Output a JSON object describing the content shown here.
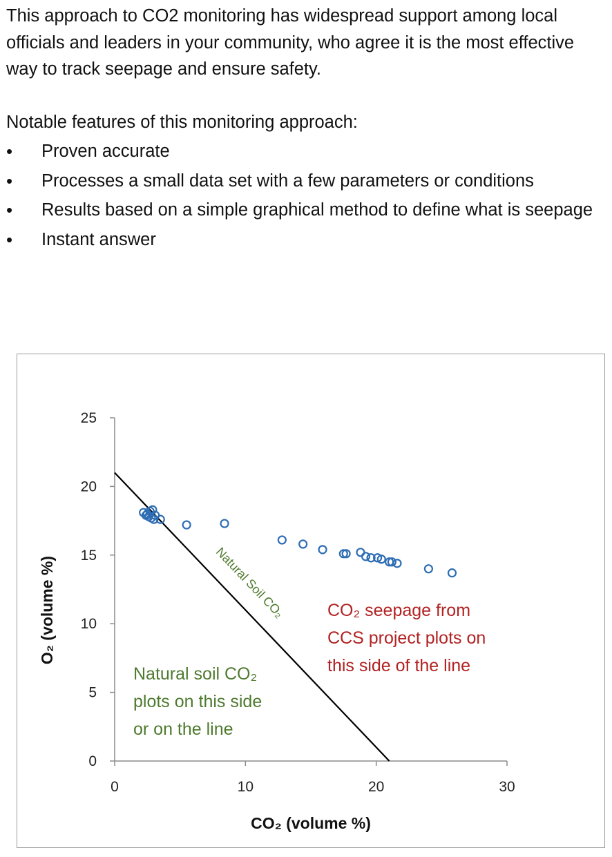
{
  "intro": {
    "paragraph": "This approach to CO2 monitoring has widespread support among local officials and leaders in your community, who agree it is the most effective way to track seepage and ensure safety.",
    "features_heading": "Notable features of this monitoring approach:",
    "features": [
      "Proven accurate",
      "Processes a small data set with a few parameters or conditions",
      "Results based on a simple graphical method to define what is seepage",
      "Instant answer"
    ],
    "bullet_symbol": "•"
  },
  "chart_data": {
    "type": "scatter",
    "xlabel": "CO₂ (volume %)",
    "ylabel": "O₂ (volume %)",
    "xlim": [
      0,
      30
    ],
    "ylim": [
      0,
      25
    ],
    "xticks": [
      "0",
      "10",
      "20",
      "30"
    ],
    "yticks": [
      "0",
      "5",
      "10",
      "15",
      "20",
      "25"
    ],
    "grid": false,
    "marker_color": "#2e6db4",
    "line_color": "#000000",
    "green_text_color": "#4e7a2e",
    "red_text_color": "#b22222",
    "points": [
      {
        "x": 2.2,
        "y": 18.1
      },
      {
        "x": 2.4,
        "y": 17.9
      },
      {
        "x": 2.5,
        "y": 18.0
      },
      {
        "x": 2.6,
        "y": 17.8
      },
      {
        "x": 2.7,
        "y": 18.2
      },
      {
        "x": 2.8,
        "y": 17.7
      },
      {
        "x": 2.9,
        "y": 18.3
      },
      {
        "x": 3.0,
        "y": 17.6
      },
      {
        "x": 3.1,
        "y": 17.9
      },
      {
        "x": 3.5,
        "y": 17.6
      },
      {
        "x": 5.5,
        "y": 17.2
      },
      {
        "x": 8.4,
        "y": 17.3
      },
      {
        "x": 12.8,
        "y": 16.1
      },
      {
        "x": 14.4,
        "y": 15.8
      },
      {
        "x": 15.9,
        "y": 15.4
      },
      {
        "x": 17.5,
        "y": 15.1
      },
      {
        "x": 17.7,
        "y": 15.1
      },
      {
        "x": 18.8,
        "y": 15.2
      },
      {
        "x": 19.2,
        "y": 14.9
      },
      {
        "x": 19.6,
        "y": 14.8
      },
      {
        "x": 20.1,
        "y": 14.8
      },
      {
        "x": 20.4,
        "y": 14.7
      },
      {
        "x": 21.0,
        "y": 14.5
      },
      {
        "x": 21.2,
        "y": 14.5
      },
      {
        "x": 21.6,
        "y": 14.4
      },
      {
        "x": 24.0,
        "y": 14.0
      },
      {
        "x": 25.8,
        "y": 13.7
      }
    ],
    "boundary_line": {
      "x": [
        0,
        21
      ],
      "y": [
        21,
        0
      ]
    },
    "annotations": {
      "line_label": "Natural Soil CO₂",
      "natural_side": [
        "Natural soil CO₂",
        "plots on this side",
        "or on the line"
      ],
      "seepage_side": [
        "CO₂ seepage from",
        "CCS project plots on",
        "this side of the line"
      ]
    }
  }
}
